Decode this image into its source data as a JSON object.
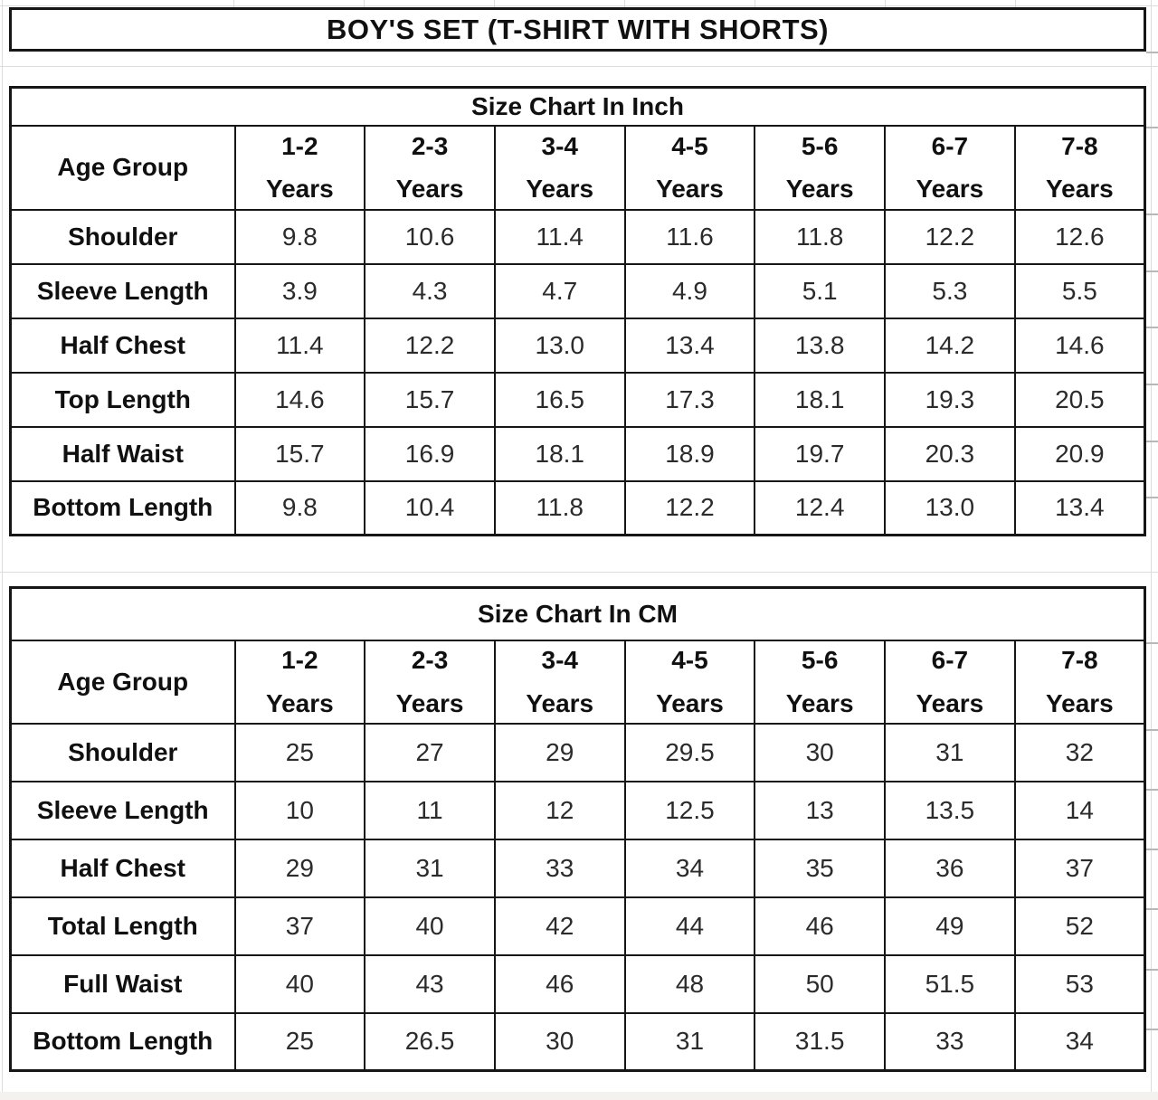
{
  "page_title": "BOY'S SET (T-SHIRT WITH SHORTS)",
  "age_group_label": "Age Group",
  "years_label": "Years",
  "age_ranges": [
    "1-2",
    "2-3",
    "3-4",
    "4-5",
    "5-6",
    "6-7",
    "7-8"
  ],
  "tables": [
    {
      "title": "Size Chart In Inch",
      "rows": [
        {
          "label": "Shoulder",
          "values": [
            "9.8",
            "10.6",
            "11.4",
            "11.6",
            "11.8",
            "12.2",
            "12.6"
          ]
        },
        {
          "label": "Sleeve Length",
          "values": [
            "3.9",
            "4.3",
            "4.7",
            "4.9",
            "5.1",
            "5.3",
            "5.5"
          ]
        },
        {
          "label": "Half Chest",
          "values": [
            "11.4",
            "12.2",
            "13.0",
            "13.4",
            "13.8",
            "14.2",
            "14.6"
          ]
        },
        {
          "label": "Top Length",
          "values": [
            "14.6",
            "15.7",
            "16.5",
            "17.3",
            "18.1",
            "19.3",
            "20.5"
          ]
        },
        {
          "label": "Half Waist",
          "values": [
            "15.7",
            "16.9",
            "18.1",
            "18.9",
            "19.7",
            "20.3",
            "20.9"
          ]
        },
        {
          "label": "Bottom Length",
          "values": [
            "9.8",
            "10.4",
            "11.8",
            "12.2",
            "12.4",
            "13.0",
            "13.4"
          ]
        }
      ]
    },
    {
      "title": "Size Chart In CM",
      "rows": [
        {
          "label": "Shoulder",
          "values": [
            "25",
            "27",
            "29",
            "29.5",
            "30",
            "31",
            "32"
          ]
        },
        {
          "label": "Sleeve Length",
          "values": [
            "10",
            "11",
            "12",
            "12.5",
            "13",
            "13.5",
            "14"
          ]
        },
        {
          "label": "Half Chest",
          "values": [
            "29",
            "31",
            "33",
            "34",
            "35",
            "36",
            "37"
          ]
        },
        {
          "label": "Total Length",
          "values": [
            "37",
            "40",
            "42",
            "44",
            "46",
            "49",
            "52"
          ]
        },
        {
          "label": "Full Waist",
          "values": [
            "40",
            "43",
            "46",
            "48",
            "50",
            "51.5",
            "53"
          ]
        },
        {
          "label": "Bottom Length",
          "values": [
            "25",
            "26.5",
            "30",
            "31",
            "31.5",
            "33",
            "34"
          ]
        }
      ]
    }
  ],
  "colors": {
    "border": "#161616",
    "label_text": "#101010",
    "value_text": "#2b2b2b",
    "gridline_faint": "#dcdcdc",
    "background": "#ffffff"
  }
}
